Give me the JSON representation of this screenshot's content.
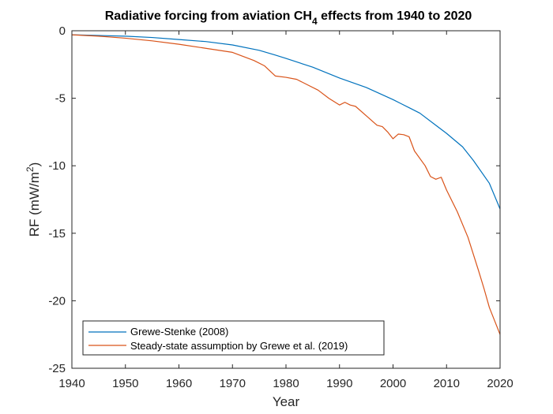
{
  "chart_data": {
    "type": "line",
    "title": {
      "prefix": "Radiative forcing from aviation CH",
      "subscript": "4",
      "suffix": " effects from 1940 to 2020"
    },
    "xlabel": "Year",
    "ylabel": {
      "prefix": "RF (mW/m",
      "superscript": "2",
      "suffix": ")"
    },
    "xlim": [
      1940,
      2020
    ],
    "ylim": [
      -25,
      0
    ],
    "xticks": [
      1940,
      1950,
      1960,
      1970,
      1980,
      1990,
      2000,
      2010,
      2020
    ],
    "yticks": [
      0,
      -5,
      -10,
      -15,
      -20,
      -25
    ],
    "xtick_labels": [
      "1940",
      "1950",
      "1960",
      "1970",
      "1980",
      "1990",
      "2000",
      "2010",
      "2020"
    ],
    "ytick_labels": [
      "0",
      "-5",
      "-10",
      "-15",
      "-20",
      "-25"
    ],
    "grid": false,
    "legend_position": "bottom-left",
    "series": [
      {
        "name": "Grewe-Stenke (2008)",
        "color": "#0072BD",
        "x": [
          1940,
          1945,
          1950,
          1955,
          1960,
          1965,
          1970,
          1975,
          1978,
          1980,
          1985,
          1990,
          1995,
          2000,
          2003,
          2005,
          2008,
          2010,
          2013,
          2015,
          2018,
          2020
        ],
        "y": [
          -0.3,
          -0.35,
          -0.4,
          -0.5,
          -0.65,
          -0.8,
          -1.05,
          -1.45,
          -1.8,
          -2.05,
          -2.7,
          -3.5,
          -4.2,
          -5.1,
          -5.7,
          -6.1,
          -7.0,
          -7.6,
          -8.6,
          -9.6,
          -11.3,
          -13.2
        ]
      },
      {
        "name": "Steady-state assumption by Grewe et al. (2019)",
        "color": "#D95319",
        "x": [
          1940,
          1945,
          1950,
          1955,
          1960,
          1965,
          1970,
          1972,
          1974,
          1976,
          1978,
          1980,
          1982,
          1984,
          1986,
          1988,
          1990,
          1991,
          1992,
          1993,
          1995,
          1997,
          1998,
          1999,
          2000,
          2001,
          2002,
          2003,
          2004,
          2006,
          2007,
          2008,
          2009,
          2010,
          2012,
          2014,
          2016,
          2017,
          2018,
          2019,
          2020
        ],
        "y": [
          -0.3,
          -0.4,
          -0.55,
          -0.75,
          -1.0,
          -1.3,
          -1.6,
          -1.9,
          -2.2,
          -2.6,
          -3.35,
          -3.45,
          -3.6,
          -4.0,
          -4.4,
          -5.0,
          -5.5,
          -5.3,
          -5.5,
          -5.6,
          -6.3,
          -7.0,
          -7.1,
          -7.5,
          -8.0,
          -7.65,
          -7.7,
          -7.85,
          -8.9,
          -10.0,
          -10.8,
          -11.0,
          -10.85,
          -11.8,
          -13.4,
          -15.3,
          -17.8,
          -19.1,
          -20.5,
          -21.5,
          -22.5
        ]
      }
    ]
  }
}
